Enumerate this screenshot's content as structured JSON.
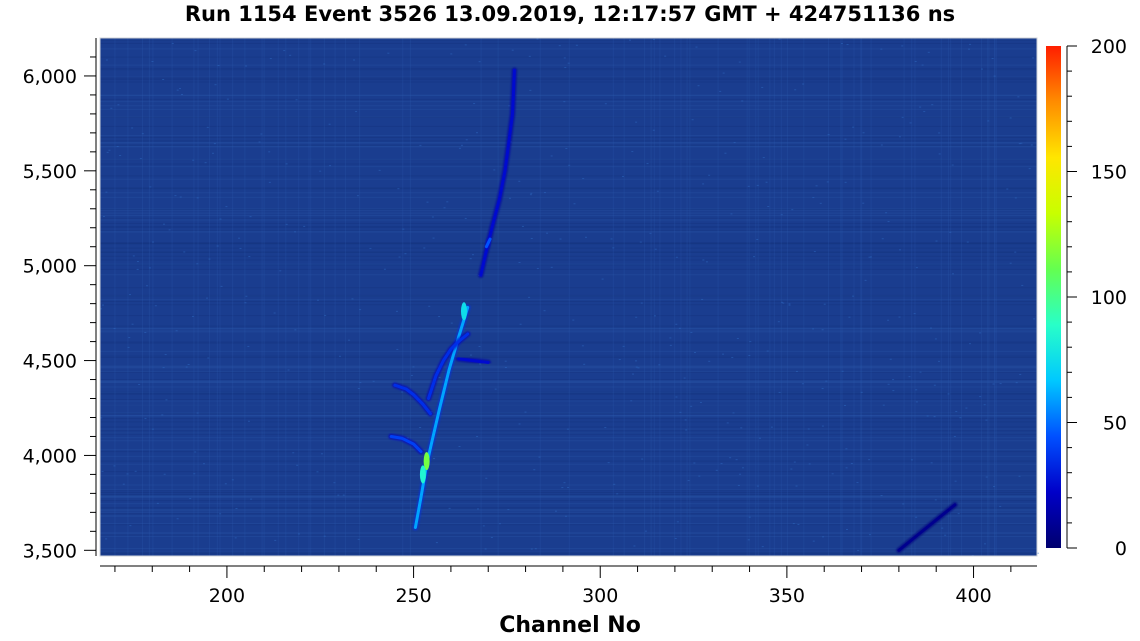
{
  "chart_data": {
    "type": "heatmap",
    "title": "Run 1154 Event 3526 13.09.2019, 12:17:57 GMT + 424751136 ns",
    "xlabel": "Channel No",
    "ylabel": "",
    "zlabel": "",
    "xlim": [
      166,
      417
    ],
    "ylim": [
      3470,
      6200
    ],
    "zlim": [
      0,
      200
    ],
    "x_ticks": [
      200,
      250,
      300,
      350,
      400
    ],
    "x_tick_labels": [
      "200",
      "250",
      "300",
      "350",
      "400"
    ],
    "y_ticks": [
      3500,
      4000,
      4500,
      5000,
      5500,
      6000
    ],
    "y_tick_labels": [
      "3,500",
      "4,000",
      "4,500",
      "5,000",
      "5,500",
      "6,000"
    ],
    "z_ticks": [
      0,
      50,
      100,
      150,
      200
    ],
    "z_tick_labels": [
      "0",
      "50",
      "100",
      "150",
      "200"
    ],
    "colormap": [
      "#00006e",
      "#0000c8",
      "#0050ff",
      "#00c8ff",
      "#28ffc8",
      "#64ff50",
      "#c8ff00",
      "#ffe600",
      "#ff8c00",
      "#ff1e00"
    ],
    "background_color": "#1a3d8f",
    "tracks": [
      {
        "name": "main-track",
        "points": [
          [
            250.5,
            3620
          ],
          [
            252,
            3780
          ],
          [
            253.5,
            3950
          ],
          [
            255,
            4080
          ],
          [
            257,
            4250
          ],
          [
            259.5,
            4450
          ],
          [
            262,
            4620
          ],
          [
            264.5,
            4780
          ]
        ],
        "intensity": 60
      },
      {
        "name": "upper-track",
        "points": [
          [
            268,
            4950
          ],
          [
            269.5,
            5080
          ],
          [
            271,
            5200
          ],
          [
            273,
            5350
          ],
          [
            274.5,
            5500
          ],
          [
            275.5,
            5650
          ],
          [
            276.5,
            5800
          ],
          [
            277,
            6030
          ]
        ],
        "intensity": 25
      },
      {
        "name": "lower-branch",
        "points": [
          [
            244,
            4100
          ],
          [
            247,
            4090
          ],
          [
            250,
            4060
          ],
          [
            252,
            4020
          ]
        ],
        "intensity": 40
      },
      {
        "name": "mid-branch",
        "points": [
          [
            245,
            4370
          ],
          [
            248,
            4350
          ],
          [
            250,
            4320
          ],
          [
            252.5,
            4270
          ],
          [
            254.5,
            4220
          ]
        ],
        "intensity": 35
      },
      {
        "name": "loop-branch",
        "points": [
          [
            254,
            4300
          ],
          [
            256,
            4420
          ],
          [
            258,
            4500
          ],
          [
            260,
            4560
          ],
          [
            262,
            4600
          ],
          [
            264.5,
            4640
          ]
        ],
        "intensity": 35
      },
      {
        "name": "side-branch",
        "points": [
          [
            262,
            4510
          ],
          [
            266,
            4500
          ],
          [
            270,
            4490
          ]
        ],
        "intensity": 25
      },
      {
        "name": "blob-5100",
        "points": [
          [
            269.5,
            5100
          ],
          [
            270.5,
            5140
          ]
        ],
        "intensity": 45
      },
      {
        "name": "faint-diagonal",
        "points": [
          [
            380,
            3500
          ],
          [
            385,
            3580
          ],
          [
            390,
            3660
          ],
          [
            395,
            3740
          ]
        ],
        "intensity": 8
      }
    ],
    "hot_spots": [
      {
        "x": 253.5,
        "y": 3970,
        "value": 115
      },
      {
        "x": 252.5,
        "y": 3900,
        "value": 85
      },
      {
        "x": 263.5,
        "y": 4760,
        "value": 75
      }
    ],
    "grid": false,
    "legend": "colorbar-right"
  }
}
